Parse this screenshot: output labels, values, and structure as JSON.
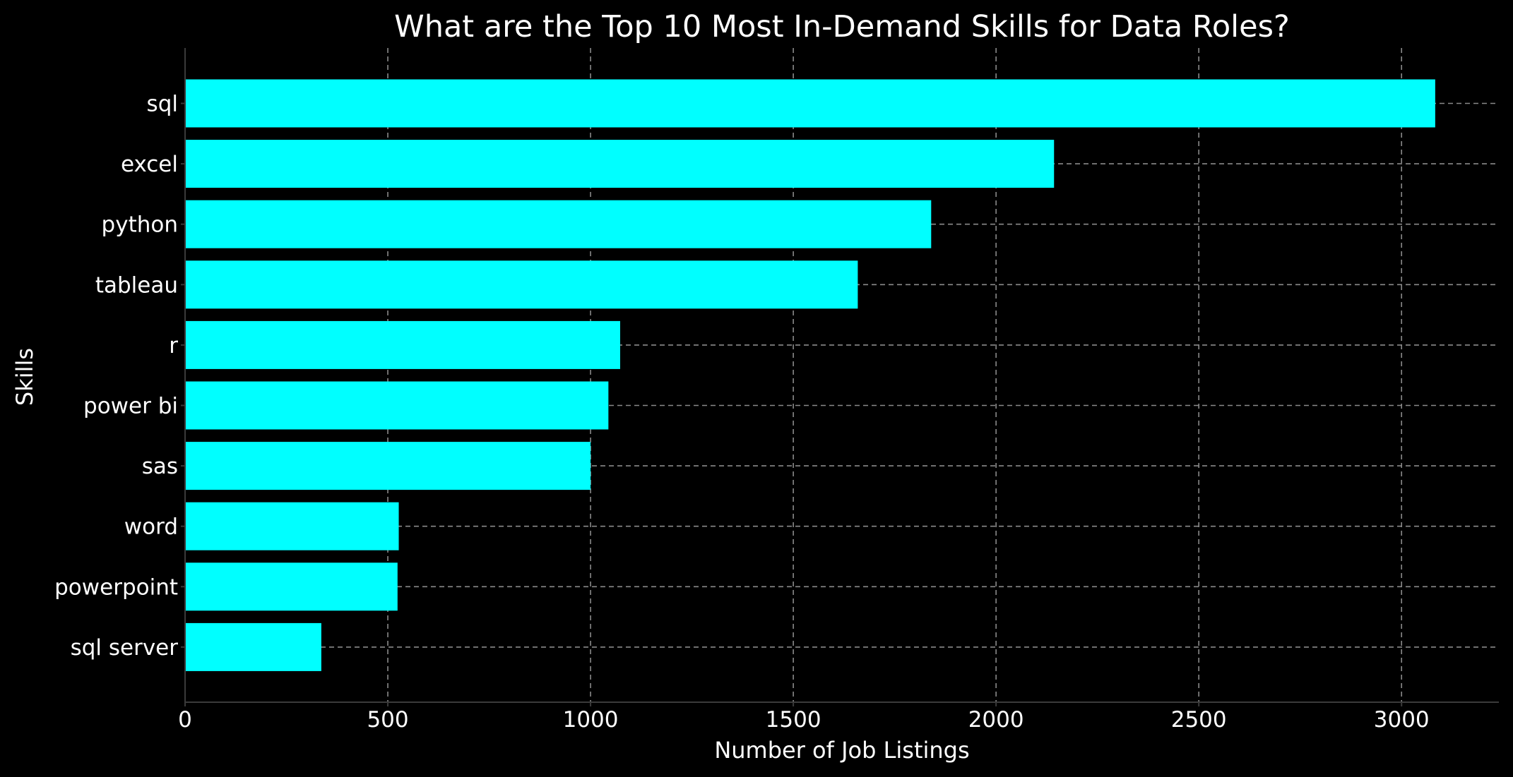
{
  "chart_data": {
    "type": "bar",
    "orientation": "horizontal",
    "title": "What are the Top 10 Most In-Demand Skills for Data Roles?",
    "xlabel": "Number of Job Listings",
    "ylabel": "Skills",
    "categories": [
      "sql",
      "excel",
      "python",
      "tableau",
      "r",
      "power bi",
      "sas",
      "word",
      "powerpoint",
      "sql server"
    ],
    "values": [
      3083,
      2143,
      1840,
      1659,
      1073,
      1044,
      1000,
      527,
      524,
      336
    ],
    "xlim": [
      0,
      3240
    ],
    "xticks": [
      0,
      500,
      1000,
      1500,
      2000,
      2500,
      3000
    ],
    "grid": true,
    "colors": {
      "background": "#000000",
      "bar": "#00ffff",
      "text": "#ffffff",
      "grid": "#8a8a8a"
    }
  }
}
